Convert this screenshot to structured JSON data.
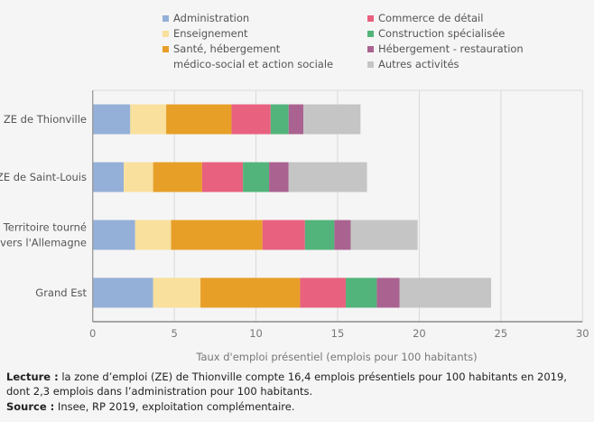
{
  "chart_data": {
    "type": "bar",
    "orientation": "horizontal",
    "stacked": true,
    "categories": [
      "ZE de Thionville",
      "ZE de Saint-Louis",
      "Territoire tourné\nvers l'Allemagne",
      "Grand Est"
    ],
    "series": [
      {
        "name": "Administration",
        "color": "#95b0d8",
        "values": [
          2.3,
          1.9,
          2.6,
          3.7
        ]
      },
      {
        "name": "Enseignement",
        "color": "#f9e09d",
        "values": [
          2.2,
          1.8,
          2.2,
          2.9
        ]
      },
      {
        "name": "Santé, hébergement\nmédico-social et action sociale",
        "color": "#e79f28",
        "values": [
          4.0,
          3.0,
          5.6,
          6.1
        ]
      },
      {
        "name": "Commerce de détail",
        "color": "#e8617f",
        "values": [
          2.4,
          2.5,
          2.6,
          2.8
        ]
      },
      {
        "name": "Construction spécialisée",
        "color": "#52b47a",
        "values": [
          1.1,
          1.6,
          1.8,
          1.9
        ]
      },
      {
        "name": "Hébergement - restauration",
        "color": "#aa6391",
        "values": [
          0.9,
          1.2,
          1.0,
          1.4
        ]
      },
      {
        "name": "Autres activités",
        "color": "#c5c5c5",
        "values": [
          3.5,
          4.8,
          4.1,
          5.6
        ]
      }
    ],
    "xlabel": "Taux d'emploi présentiel (emplois pour 100 habitants)",
    "ylabel": "",
    "xlim": [
      0,
      30
    ],
    "xticks": [
      0,
      5,
      10,
      15,
      20,
      25,
      30
    ],
    "grid": true,
    "legend_position": "top"
  },
  "notes": {
    "lecture_label": "Lecture :",
    "lecture_text": " la zone d’emploi (ZE) de Thionville compte 16,4 emplois présentiels pour 100 habitants en 2019, dont 2,3 emplois dans l’administration pour 100 habitants.",
    "source_label": "Source :",
    "source_text": " Insee, RP 2019, exploitation complémentaire."
  }
}
